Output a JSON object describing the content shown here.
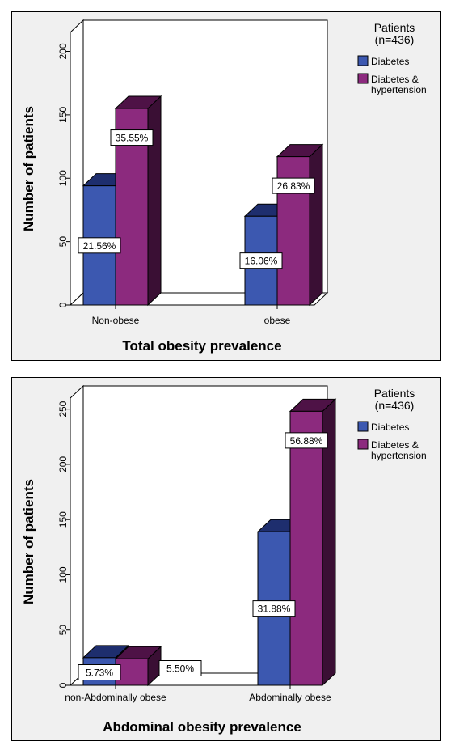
{
  "colors": {
    "diabetes": "#3c58b0",
    "diabetes_top": "#1e2e6e",
    "hypertension": "#8c2a7e",
    "hypertension_side": "#3a0f34",
    "hypertension_top": "#4e1246",
    "panel_bg": "#f0f0f0",
    "plot_bg": "#ffffff"
  },
  "chart_data": [
    {
      "type": "bar",
      "xlabel": "Total obesity prevalence",
      "ylabel": "Number of patients",
      "legend_title_line1": "Patients",
      "legend_title_line2": "(n=436)",
      "legend_placement": "right",
      "categories": [
        "Non-obese",
        "obese"
      ],
      "series": [
        {
          "name": "Diabetes",
          "values": [
            94,
            70
          ],
          "labels": [
            "21.56%",
            "16.06%"
          ]
        },
        {
          "name": "Diabetes & hypertension",
          "values": [
            155,
            117
          ],
          "labels": [
            "35.55%",
            "26.83%"
          ]
        }
      ],
      "yticks": [
        0,
        50,
        100,
        150,
        200
      ],
      "ylim": [
        0,
        215
      ],
      "grid": false
    },
    {
      "type": "bar",
      "xlabel": "Abdominal obesity prevalence",
      "ylabel": "Number of patients",
      "legend_title_line1": "Patients",
      "legend_title_line2": "(n=436)",
      "legend_placement": "right",
      "categories": [
        "non-Abdominally obese",
        "Abdominally obese"
      ],
      "series": [
        {
          "name": "Diabetes",
          "values": [
            25,
            139
          ],
          "labels": [
            "5.73%",
            "31.88%"
          ]
        },
        {
          "name": "Diabetes & hypertension",
          "values": [
            24,
            248
          ],
          "labels": [
            "5.50%",
            "56.88%"
          ]
        }
      ],
      "yticks": [
        0,
        50,
        100,
        150,
        200,
        250
      ],
      "ylim": [
        0,
        260
      ],
      "grid": false
    }
  ]
}
